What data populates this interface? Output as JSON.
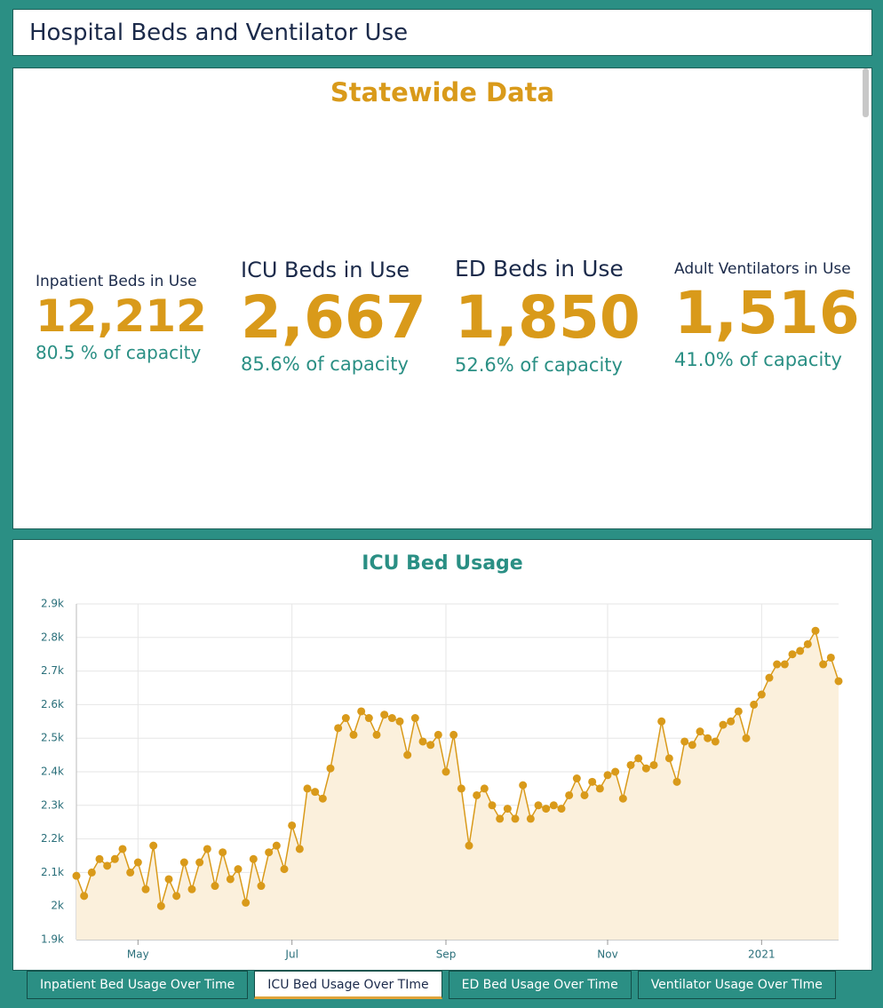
{
  "header": {
    "title": "Hospital Beds and Ventilator Use"
  },
  "stats": {
    "title": "Statewide Data",
    "items": [
      {
        "label": "Inpatient Beds in Use",
        "value": "12,212",
        "capacity": "80.5 % of capacity"
      },
      {
        "label": "ICU Beds in Use",
        "value": "2,667",
        "capacity": "85.6% of capacity"
      },
      {
        "label": "ED Beds in Use",
        "value": "1,850",
        "capacity": "52.6% of capacity"
      },
      {
        "label": "Adult Ventilators in Use",
        "value": "1,516",
        "capacity": "41.0% of capacity"
      }
    ]
  },
  "chart_data": {
    "type": "line",
    "title": "ICU Bed Usage",
    "categories": [
      null,
      null,
      null,
      null,
      null,
      null,
      null,
      null,
      "May",
      null,
      null,
      null,
      null,
      null,
      null,
      null,
      null,
      null,
      null,
      null,
      null,
      null,
      null,
      null,
      null,
      null,
      null,
      null,
      "Jul",
      null,
      null,
      null,
      null,
      null,
      null,
      null,
      null,
      null,
      null,
      null,
      null,
      null,
      null,
      null,
      null,
      null,
      null,
      null,
      "Sep",
      null,
      null,
      null,
      null,
      null,
      null,
      null,
      null,
      null,
      null,
      null,
      null,
      null,
      null,
      null,
      null,
      null,
      null,
      null,
      null,
      "Nov",
      null,
      null,
      null,
      null,
      null,
      null,
      null,
      null,
      null,
      null,
      null,
      null,
      null,
      null,
      null,
      null,
      null,
      null,
      null,
      "2021",
      null,
      null,
      null,
      null,
      null,
      null,
      null,
      null,
      null,
      null
    ],
    "values": [
      2090,
      2030,
      2100,
      2140,
      2120,
      2140,
      2170,
      2100,
      2130,
      2050,
      2180,
      2000,
      2080,
      2030,
      2130,
      2050,
      2130,
      2170,
      2060,
      2160,
      2080,
      2110,
      2010,
      2140,
      2060,
      2160,
      2180,
      2110,
      2240,
      2170,
      2350,
      2340,
      2320,
      2410,
      2530,
      2560,
      2510,
      2580,
      2560,
      2510,
      2570,
      2560,
      2550,
      2450,
      2560,
      2490,
      2480,
      2510,
      2400,
      2510,
      2350,
      2180,
      2330,
      2350,
      2300,
      2260,
      2290,
      2260,
      2360,
      2260,
      2300,
      2290,
      2300,
      2290,
      2330,
      2380,
      2330,
      2370,
      2350,
      2390,
      2400,
      2320,
      2420,
      2440,
      2410,
      2420,
      2550,
      2440,
      2370,
      2490,
      2480,
      2520,
      2500,
      2490,
      2540,
      2550,
      2580,
      2500,
      2600,
      2630,
      2680,
      2720,
      2720,
      2750,
      2760,
      2780,
      2820,
      2720,
      2740,
      2670
    ],
    "color": "#d99a1a",
    "area_color": "#fbf0dc",
    "ylim": [
      1900,
      2900
    ],
    "yticks": [
      {
        "value": 1900,
        "label": "1.9k"
      },
      {
        "value": 2000,
        "label": "2k"
      },
      {
        "value": 2100,
        "label": "2.1k"
      },
      {
        "value": 2200,
        "label": "2.2k"
      },
      {
        "value": 2300,
        "label": "2.3k"
      },
      {
        "value": 2400,
        "label": "2.4k"
      },
      {
        "value": 2500,
        "label": "2.5k"
      },
      {
        "value": 2600,
        "label": "2.6k"
      },
      {
        "value": 2700,
        "label": "2.7k"
      },
      {
        "value": 2800,
        "label": "2.8k"
      },
      {
        "value": 2900,
        "label": "2.9k"
      }
    ],
    "grid": true
  },
  "tabs": [
    "Inpatient Bed Usage Over Time",
    "ICU Bed Usage Over TIme",
    "ED Bed Usage Over Time",
    "Ventilator Usage Over TIme"
  ]
}
